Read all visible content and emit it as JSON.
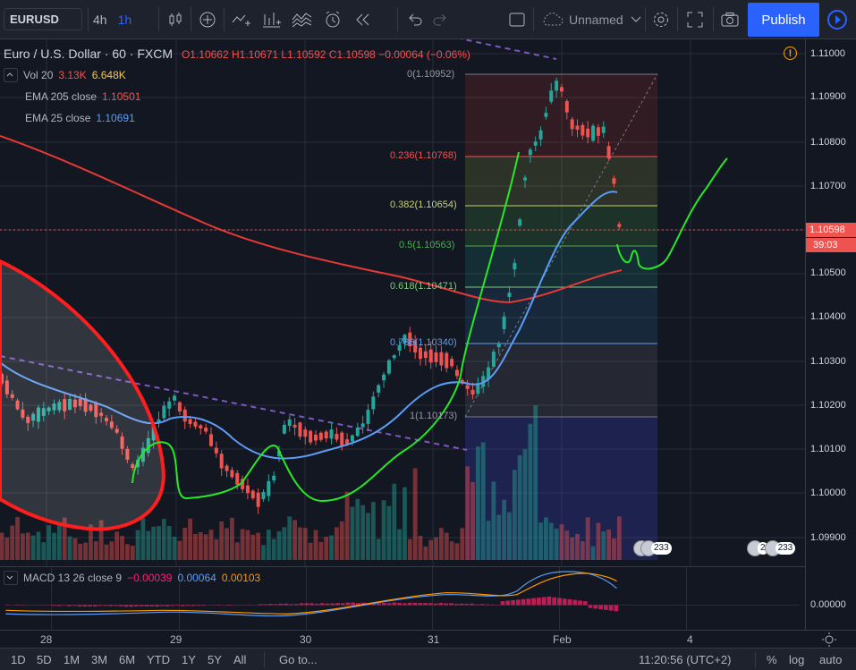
{
  "toolbar": {
    "symbol": "EURUSD",
    "intervals": [
      "4h",
      "1h"
    ],
    "active_interval": "1h",
    "layout_name": "Unnamed",
    "publish_label": "Publish"
  },
  "legend": {
    "title": "Euro / U.S. Dollar · 60 · FXCM",
    "ohlc": {
      "open": "O1.10662",
      "high": "H1.10671",
      "low": "L1.10592",
      "close": "C1.10598",
      "change": "−0.00064 (−0.06%)"
    },
    "indicators": [
      {
        "name": "Vol 20",
        "value1": "3.13K",
        "value2": "6.648K",
        "color1": "#ef5350",
        "color2": "#f7c948"
      },
      {
        "name": "EMA 205 close",
        "value1": "1.10501",
        "color1": "#ef5350"
      },
      {
        "name": "EMA 25 close",
        "value1": "1.10691",
        "color1": "#5b9cf6"
      }
    ]
  },
  "price_axis": {
    "labels": [
      "1.11000",
      "1.10900",
      "1.10800",
      "1.10700",
      "1.10600",
      "1.10500",
      "1.10400",
      "1.10300",
      "1.10200",
      "1.10100",
      "1.10000",
      "1.09900"
    ],
    "current_price": "1.10598",
    "countdown": "39:03",
    "macd_label": "0.00000"
  },
  "fib": {
    "levels": [
      {
        "text": "0(1.10952)",
        "color": "#9598a1"
      },
      {
        "text": "0.236(1.10768)",
        "color": "#ef5350"
      },
      {
        "text": "0.382(1.10654)",
        "color": "#c9d36a"
      },
      {
        "text": "0.5(1.10563)",
        "color": "#4caf50"
      },
      {
        "text": "0.618(1.10471)",
        "color": "#81c784"
      },
      {
        "text": "0.786(1.10340)",
        "color": "#5b9cf6"
      },
      {
        "text": "1(1.10173)",
        "color": "#9598a1"
      }
    ]
  },
  "events": [
    {
      "count": "233"
    },
    {
      "count": "2"
    },
    {
      "count": "233"
    }
  ],
  "macd": {
    "title": "MACD 13 26 close 9",
    "v1": "−0.00039",
    "v2": "0.00064",
    "v3": "0.00103",
    "c1": "#f7217a",
    "c2": "#5b9cf6",
    "c3": "#ff9800"
  },
  "time_axis": {
    "labels": [
      "28",
      "29",
      "30",
      "31",
      "Feb",
      "4"
    ]
  },
  "bottom": {
    "ranges": [
      "1D",
      "5D",
      "1M",
      "3M",
      "6M",
      "YTD",
      "1Y",
      "5Y",
      "All"
    ],
    "goto": "Go to...",
    "clock": "11:20:56 (UTC+2)",
    "percent": "%",
    "log": "log",
    "auto": "auto"
  }
}
